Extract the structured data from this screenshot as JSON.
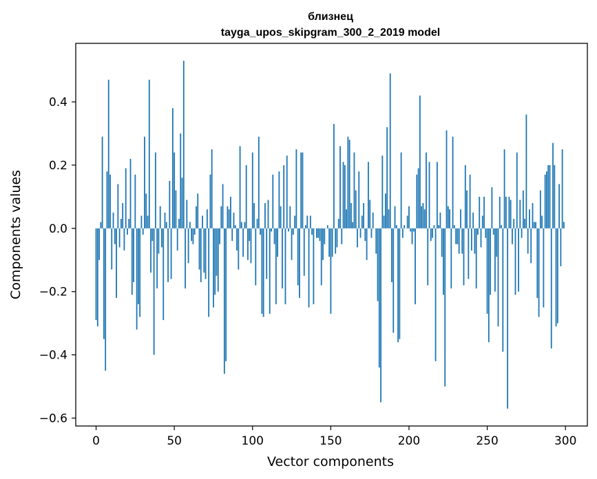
{
  "chart_data": {
    "type": "bar",
    "title": "близнец",
    "subtitle": "tayga_upos_skipgram_300_2_2019 model",
    "xlabel": "Vector components",
    "ylabel": "Components values",
    "xlim": [
      -13,
      314
    ],
    "ylim": [
      -0.625,
      0.585
    ],
    "xticks": [
      0,
      50,
      100,
      150,
      200,
      250,
      300
    ],
    "yticks": [
      -0.6,
      -0.4,
      -0.2,
      0.0,
      0.2,
      0.4
    ],
    "ytick_labels": [
      "−0.6",
      "−0.4",
      "−0.2",
      "0.0",
      "0.2",
      "0.4"
    ],
    "grid": false,
    "legend": "none",
    "bar_color": "#1f77b4",
    "x": [
      0,
      1,
      2,
      3,
      4,
      5,
      6,
      7,
      8,
      9,
      10,
      11,
      12,
      13,
      14,
      15,
      16,
      17,
      18,
      19,
      20,
      21,
      22,
      23,
      24,
      25,
      26,
      27,
      28,
      29,
      30,
      31,
      32,
      33,
      34,
      35,
      36,
      37,
      38,
      39,
      40,
      41,
      42,
      43,
      44,
      45,
      46,
      47,
      48,
      49,
      50,
      51,
      52,
      53,
      54,
      55,
      56,
      57,
      58,
      59,
      60,
      61,
      62,
      63,
      64,
      65,
      66,
      67,
      68,
      69,
      70,
      71,
      72,
      73,
      74,
      75,
      76,
      77,
      78,
      79,
      80,
      81,
      82,
      83,
      84,
      85,
      86,
      87,
      88,
      89,
      90,
      91,
      92,
      93,
      94,
      95,
      96,
      97,
      98,
      99,
      100,
      101,
      102,
      103,
      104,
      105,
      106,
      107,
      108,
      109,
      110,
      111,
      112,
      113,
      114,
      115,
      116,
      117,
      118,
      119,
      120,
      121,
      122,
      123,
      124,
      125,
      126,
      127,
      128,
      129,
      130,
      131,
      132,
      133,
      134,
      135,
      136,
      137,
      138,
      139,
      140,
      141,
      142,
      143,
      144,
      145,
      146,
      147,
      148,
      149,
      150,
      151,
      152,
      153,
      154,
      155,
      156,
      157,
      158,
      159,
      160,
      161,
      162,
      163,
      164,
      165,
      166,
      167,
      168,
      169,
      170,
      171,
      172,
      173,
      174,
      175,
      176,
      177,
      178,
      179,
      180,
      181,
      182,
      183,
      184,
      185,
      186,
      187,
      188,
      189,
      190,
      191,
      192,
      193,
      194,
      195,
      196,
      197,
      198,
      199,
      200,
      201,
      202,
      203,
      204,
      205,
      206,
      207,
      208,
      209,
      210,
      211,
      212,
      213,
      214,
      215,
      216,
      217,
      218,
      219,
      220,
      221,
      222,
      223,
      224,
      225,
      226,
      227,
      228,
      229,
      230,
      231,
      232,
      233,
      234,
      235,
      236,
      237,
      238,
      239,
      240,
      241,
      242,
      243,
      244,
      245,
      246,
      247,
      248,
      249,
      250,
      251,
      252,
      253,
      254,
      255,
      256,
      257,
      258,
      259,
      260,
      261,
      262,
      263,
      264,
      265,
      266,
      267,
      268,
      269,
      270,
      271,
      272,
      273,
      274,
      275,
      276,
      277,
      278,
      279,
      280,
      281,
      282,
      283,
      284,
      285,
      286,
      287,
      288,
      289,
      290,
      291,
      292,
      293,
      294,
      295,
      296,
      297,
      298,
      299
    ],
    "values": [
      -0.29,
      -0.31,
      -0.1,
      0.02,
      0.29,
      -0.35,
      -0.45,
      0.18,
      0.47,
      0.17,
      -0.13,
      0.05,
      -0.05,
      -0.22,
      0.14,
      -0.06,
      0.03,
      0.08,
      -0.07,
      0.19,
      -0.02,
      0.03,
      0.22,
      -0.21,
      -0.17,
      0.17,
      -0.32,
      -0.24,
      -0.28,
      0.04,
      -0.02,
      0.29,
      0.11,
      0.04,
      0.47,
      -0.14,
      -0.04,
      -0.4,
      0.24,
      -0.19,
      -0.08,
      0.07,
      -0.06,
      -0.29,
      0.05,
      0.02,
      -0.17,
      0.15,
      -0.16,
      0.38,
      0.24,
      0.12,
      -0.07,
      0.03,
      0.3,
      0.16,
      0.53,
      -0.19,
      0.09,
      -0.11,
      0.02,
      -0.04,
      -0.05,
      -0.02,
      0.07,
      0.11,
      -0.13,
      -0.17,
      0.04,
      -0.14,
      -0.16,
      0.06,
      -0.28,
      0.17,
      0.25,
      -0.25,
      -0.21,
      -0.15,
      -0.2,
      -0.05,
      0.07,
      0.14,
      -0.46,
      -0.42,
      0.07,
      0.06,
      0.1,
      -0.04,
      0.05,
      0.01,
      -0.07,
      -0.13,
      0.26,
      0.02,
      -0.09,
      0.02,
      0.2,
      -0.1,
      -0.04,
      -0.11,
      0.24,
      0.08,
      -0.18,
      0.03,
      0.29,
      -0.02,
      -0.27,
      -0.28,
      0.08,
      -0.16,
      0.09,
      -0.27,
      -0.01,
      0.17,
      -0.05,
      -0.24,
      -0.09,
      0.18,
      0.07,
      -0.19,
      0.2,
      -0.24,
      0.23,
      -0.01,
      0.07,
      -0.1,
      -0.02,
      0.04,
      0.25,
      -0.18,
      -0.22,
      0.24,
      0.24,
      -0.15,
      0.01,
      0.04,
      -0.25,
      0.04,
      -0.02,
      -0.24,
      0.0,
      -0.03,
      -0.03,
      -0.04,
      -0.18,
      -0.1,
      -0.05,
      0.0,
      0.01,
      -0.09,
      -0.27,
      -0.09,
      0.33,
      -0.08,
      -0.06,
      0.03,
      0.26,
      -0.05,
      0.21,
      0.2,
      0.06,
      0.29,
      0.28,
      0.08,
      0.02,
      0.24,
      0.12,
      -0.06,
      0.18,
      -0.03,
      0.04,
      0.08,
      -0.04,
      -0.1,
      0.21,
      0.09,
      -0.03,
      0.05,
      0.0,
      -0.08,
      -0.23,
      -0.44,
      -0.55,
      0.23,
      0.04,
      0.11,
      0.32,
      0.06,
      0.49,
      -0.17,
      -0.33,
      0.07,
      0.01,
      -0.36,
      -0.35,
      0.24,
      -0.03,
      0.01,
      0.0,
      0.04,
      0.07,
      -0.01,
      -0.05,
      -0.01,
      -0.24,
      0.17,
      0.19,
      0.42,
      0.07,
      0.08,
      0.06,
      0.24,
      -0.18,
      0.21,
      -0.04,
      -0.03,
      0.01,
      -0.42,
      0.21,
      0.01,
      0.05,
      -0.09,
      -0.21,
      -0.5,
      0.31,
      0.07,
      0.06,
      -0.19,
      0.29,
      0.01,
      -0.05,
      -0.05,
      -0.08,
      0.06,
      -0.08,
      -0.18,
      0.2,
      0.12,
      -0.16,
      0.17,
      -0.07,
      0.05,
      -0.08,
      -0.19,
      -0.02,
      0.1,
      -0.06,
      0.04,
      0.1,
      -0.03,
      -0.27,
      -0.36,
      -0.21,
      0.13,
      -0.02,
      -0.2,
      -0.09,
      -0.31,
      0.1,
      0.01,
      -0.39,
      0.25,
      0.1,
      -0.57,
      0.1,
      0.09,
      -0.05,
      0.03,
      -0.21,
      0.24,
      -0.2,
      0.09,
      -0.03,
      0.12,
      0.03,
      0.36,
      -0.08,
      0.06,
      -0.11,
      0.08,
      0.02,
      0.02,
      -0.22,
      -0.28,
      0.12,
      0.04,
      -0.25,
      0.17,
      0.18,
      0.2,
      0.2,
      -0.38,
      0.27,
      0.2,
      -0.31,
      -0.3,
      0.14,
      -0.12,
      0.25,
      0.02
    ]
  }
}
